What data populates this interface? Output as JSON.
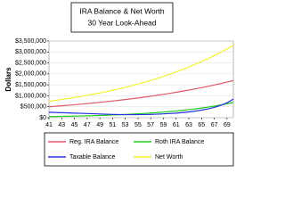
{
  "chart_data": {
    "type": "line",
    "title": "IRA Balance & Net Worth",
    "subtitle": "30 Year Look-Ahead",
    "y_label": "Dollars",
    "x": [
      41,
      42,
      43,
      44,
      45,
      46,
      47,
      48,
      49,
      50,
      51,
      52,
      53,
      54,
      55,
      56,
      57,
      58,
      59,
      60,
      61,
      62,
      63,
      64,
      65,
      66,
      67,
      68,
      69,
      70
    ],
    "xlim": [
      41,
      70
    ],
    "xticks": [
      41,
      43,
      45,
      47,
      49,
      51,
      53,
      55,
      57,
      59,
      61,
      63,
      65,
      67,
      69
    ],
    "ylim": [
      0,
      3500000
    ],
    "yticks": [
      {
        "value": 0,
        "label": "$0"
      },
      {
        "value": 500000,
        "label": "$500,000"
      },
      {
        "value": 1000000,
        "label": "$1,000,000"
      },
      {
        "value": 1500000,
        "label": "$1,500,000"
      },
      {
        "value": 2000000,
        "label": "$2,000,000"
      },
      {
        "value": 2500000,
        "label": "$2,500,000"
      },
      {
        "value": 3000000,
        "label": "$3,000,000"
      },
      {
        "value": 3500000,
        "label": "$3,500,000"
      }
    ],
    "grid": true,
    "legend": "bottom",
    "series": [
      {
        "name": "Reg. IRA Balance",
        "color": "#e05a6a",
        "values": [
          500000,
          522000,
          544000,
          567000,
          592000,
          617000,
          644000,
          671000,
          700000,
          730000,
          762000,
          794000,
          828000,
          864000,
          901000,
          940000,
          980000,
          1022000,
          1066000,
          1112000,
          1160000,
          1210000,
          1262000,
          1316000,
          1372000,
          1431000,
          1493000,
          1557000,
          1624000,
          1694000
        ]
      },
      {
        "name": "Roth IRA Balance",
        "color": "#22cc22",
        "values": [
          50000,
          55000,
          60000,
          66000,
          72000,
          79000,
          86000,
          94000,
          103000,
          113000,
          124000,
          136000,
          149000,
          163000,
          178000,
          195000,
          214000,
          234000,
          256000,
          281000,
          307000,
          336000,
          368000,
          403000,
          442000,
          484000,
          530000,
          580000,
          635000,
          695000
        ]
      },
      {
        "name": "Taxable Balance",
        "color": "#2233dd",
        "values": [
          250000,
          240000,
          230000,
          220000,
          210000,
          200000,
          190000,
          180000,
          170000,
          160000,
          150000,
          145000,
          140000,
          140000,
          140000,
          145000,
          150000,
          160000,
          175000,
          190000,
          210000,
          235000,
          265000,
          300000,
          345000,
          400000,
          470000,
          560000,
          680000,
          850000
        ]
      },
      {
        "name": "Net Worth",
        "color": "#f2f233",
        "values": [
          750000,
          789000,
          831000,
          874000,
          920000,
          968000,
          1019000,
          1073000,
          1129000,
          1188000,
          1251000,
          1316000,
          1385000,
          1458000,
          1535000,
          1615000,
          1700000,
          1789000,
          1883000,
          1982000,
          2086000,
          2196000,
          2311000,
          2433000,
          2560000,
          2695000,
          2836000,
          2985000,
          3142000,
          3307000
        ]
      }
    ]
  }
}
